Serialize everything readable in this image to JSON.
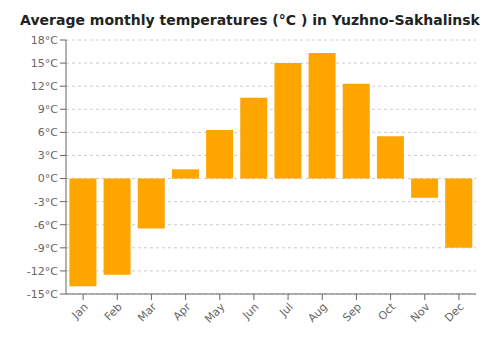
{
  "chart_data": {
    "type": "bar",
    "title": "Average monthly temperatures (°C ) in Yuzhno-Sakhalinsk",
    "categories": [
      "Jan",
      "Feb",
      "Mar",
      "Apr",
      "May",
      "Jun",
      "Jul",
      "Aug",
      "Sep",
      "Oct",
      "Nov",
      "Dec"
    ],
    "values": [
      -14,
      -12.5,
      -6.5,
      1.2,
      6.3,
      10.5,
      15.0,
      16.3,
      12.3,
      5.5,
      -2.5,
      -9.0
    ],
    "color": "#FFA500",
    "ylim": [
      -15,
      18
    ],
    "yticks": [
      {
        "value": -15,
        "label": "-15°C"
      },
      {
        "value": -12,
        "label": "-12°C"
      },
      {
        "value": -9,
        "label": "-9°C"
      },
      {
        "value": -6,
        "label": "-6°C"
      },
      {
        "value": -3,
        "label": "-3°C"
      },
      {
        "value": 0,
        "label": "0°C"
      },
      {
        "value": 3,
        "label": "3°C"
      },
      {
        "value": 6,
        "label": "6°C"
      },
      {
        "value": 9,
        "label": "9°C"
      },
      {
        "value": 12,
        "label": "12°C"
      },
      {
        "value": 15,
        "label": "15°C"
      },
      {
        "value": 18,
        "label": "18°C"
      }
    ],
    "grid": true
  }
}
